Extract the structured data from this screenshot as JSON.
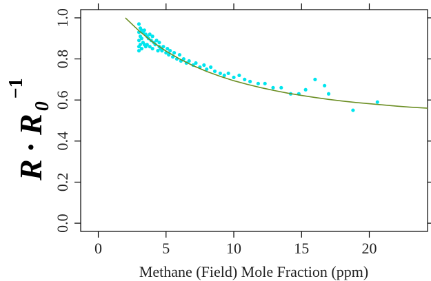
{
  "chart_data": {
    "type": "scatter",
    "title": "",
    "xlabel": "Methane (Field) Mole Fraction (ppm)",
    "ylabel": {
      "main": "R",
      "dot": "·",
      "second": "R",
      "subscript": "0",
      "superscript": "−1"
    },
    "xlim": [
      -1.3,
      24.3
    ],
    "ylim": [
      -0.04,
      1.04
    ],
    "x_ticks": [
      0,
      5,
      10,
      15,
      20
    ],
    "x_tick_labels": [
      "0",
      "5",
      "10",
      "15",
      "20"
    ],
    "y_ticks": [
      0.0,
      0.2,
      0.4,
      0.6,
      0.8,
      1.0
    ],
    "y_tick_labels": [
      "0.0",
      "0.2",
      "0.4",
      "0.6",
      "0.8",
      "1.0"
    ],
    "grid": false,
    "legend": "none",
    "series": [
      {
        "kind": "points",
        "color": "#00e5ee",
        "x": [
          3.0,
          3.0,
          3.0,
          3.0,
          3.0,
          3.1,
          3.1,
          3.1,
          3.2,
          3.2,
          3.2,
          3.3,
          3.3,
          3.4,
          3.4,
          3.5,
          3.5,
          3.6,
          3.6,
          3.7,
          3.8,
          3.8,
          3.9,
          4.0,
          4.0,
          4.1,
          4.2,
          4.3,
          4.4,
          4.5,
          4.5,
          4.6,
          4.7,
          4.8,
          5.0,
          5.1,
          5.2,
          5.3,
          5.5,
          5.6,
          5.8,
          6.0,
          6.1,
          6.3,
          6.5,
          6.7,
          7.0,
          7.2,
          7.5,
          7.8,
          8.0,
          8.3,
          8.6,
          9.0,
          9.3,
          9.6,
          10.0,
          10.4,
          10.8,
          11.2,
          11.8,
          12.3,
          12.9,
          13.5,
          14.2,
          14.8,
          15.3,
          16.0,
          16.7,
          17.0,
          18.8,
          20.6
        ],
        "y": [
          0.97,
          0.93,
          0.89,
          0.86,
          0.84,
          0.95,
          0.91,
          0.87,
          0.94,
          0.9,
          0.85,
          0.93,
          0.88,
          0.94,
          0.87,
          0.92,
          0.86,
          0.91,
          0.87,
          0.9,
          0.92,
          0.86,
          0.89,
          0.91,
          0.85,
          0.88,
          0.87,
          0.89,
          0.84,
          0.86,
          0.88,
          0.85,
          0.84,
          0.86,
          0.83,
          0.85,
          0.82,
          0.84,
          0.81,
          0.83,
          0.8,
          0.82,
          0.79,
          0.8,
          0.78,
          0.79,
          0.77,
          0.78,
          0.76,
          0.77,
          0.75,
          0.76,
          0.74,
          0.73,
          0.72,
          0.73,
          0.71,
          0.72,
          0.7,
          0.69,
          0.68,
          0.68,
          0.66,
          0.66,
          0.63,
          0.63,
          0.65,
          0.7,
          0.67,
          0.63,
          0.55,
          0.59
        ]
      },
      {
        "kind": "fit-line",
        "color": "#6b8e23",
        "x": [
          2.0,
          3.0,
          4.0,
          5.0,
          6.0,
          7.0,
          8.0,
          9.0,
          10.0,
          11.0,
          12.0,
          13.0,
          14.0,
          15.0,
          16.0,
          17.0,
          18.0,
          19.0,
          20.0,
          21.0,
          22.0,
          23.0,
          24.3
        ],
        "y": [
          1.0,
          0.937,
          0.883,
          0.838,
          0.8,
          0.767,
          0.739,
          0.715,
          0.694,
          0.676,
          0.66,
          0.646,
          0.633,
          0.622,
          0.612,
          0.603,
          0.595,
          0.588,
          0.582,
          0.576,
          0.57,
          0.565,
          0.56
        ]
      }
    ]
  }
}
